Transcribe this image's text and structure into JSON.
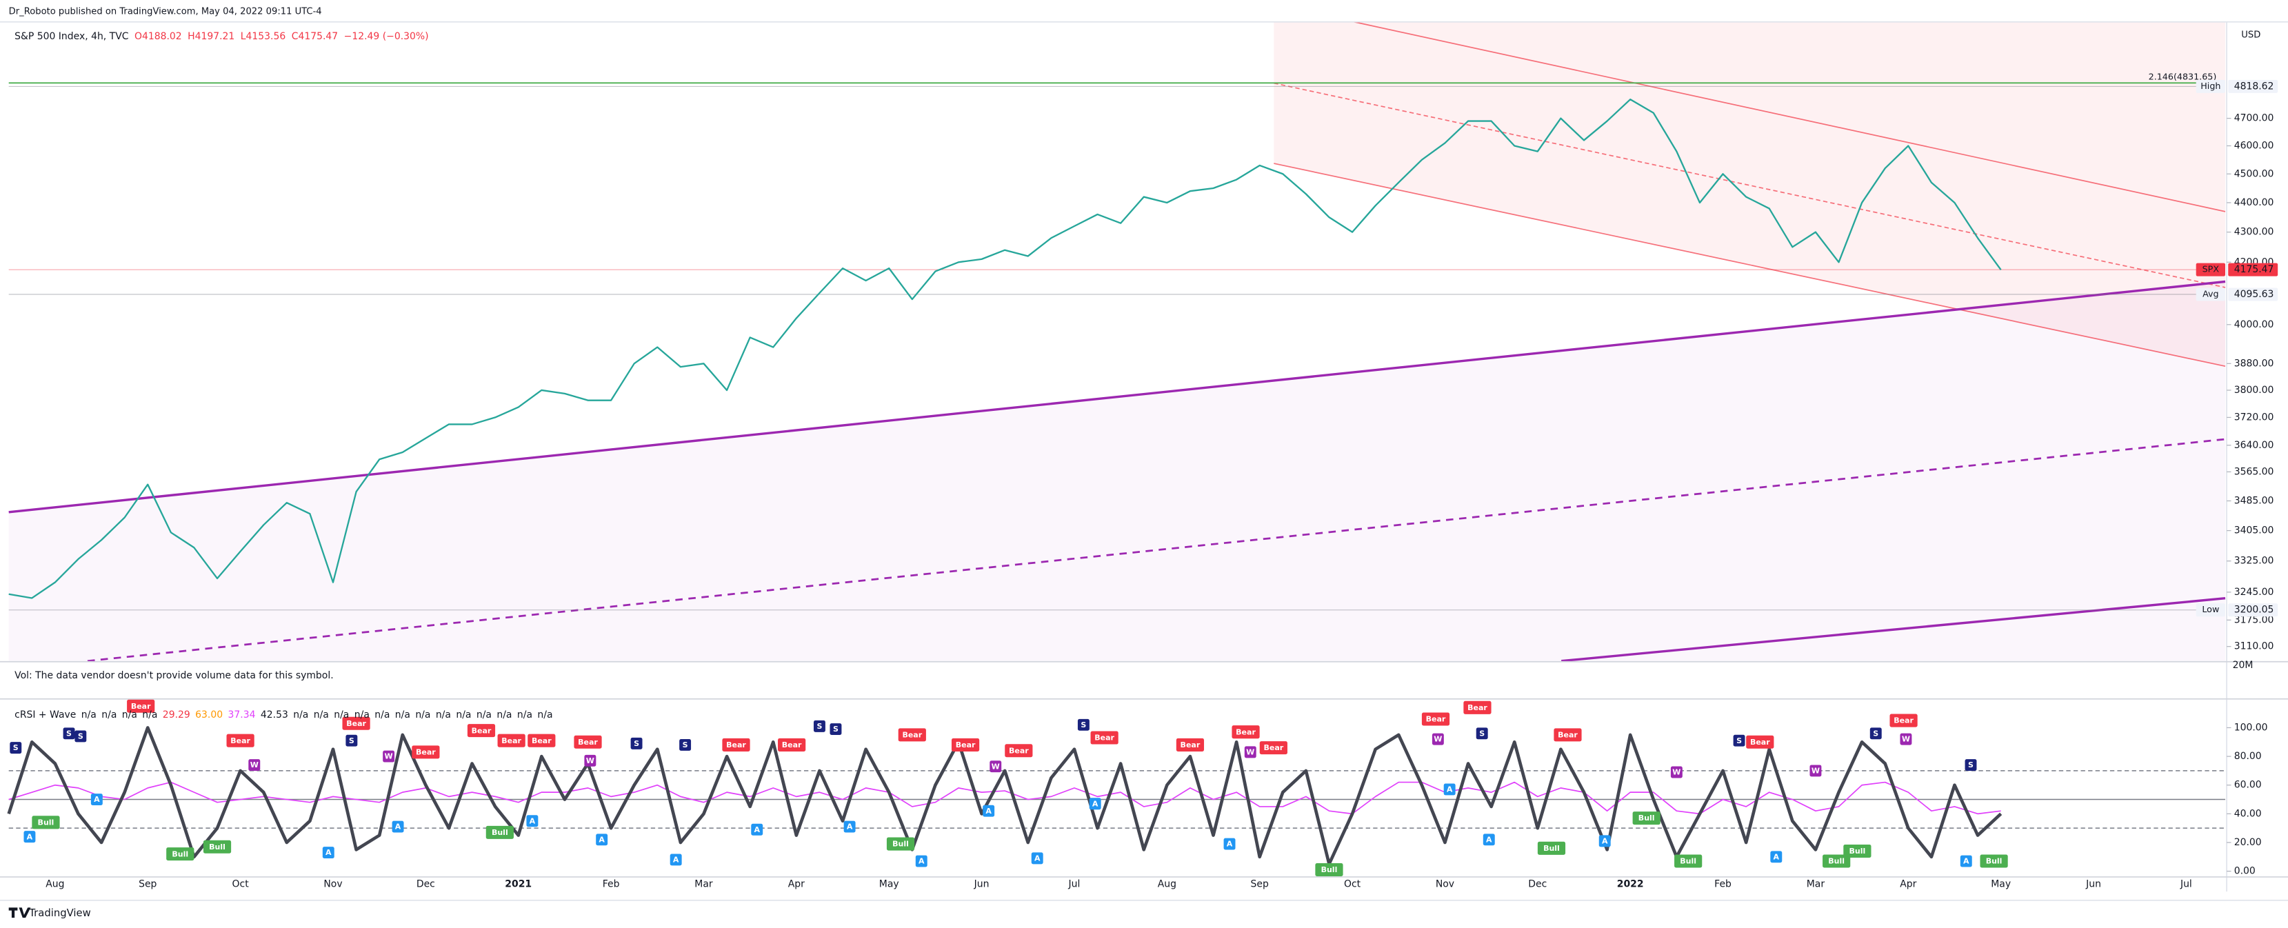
{
  "header": {
    "publisher": "Dr_Roboto published on TradingView.com, May 04, 2022 09:11 UTC-4"
  },
  "footer": {
    "brand": "TradingView"
  },
  "volume": {
    "note": "Vol: The data vendor doesn't provide volume data for this symbol.",
    "tick": "20M"
  },
  "chart_data": [
    {
      "type": "line",
      "title": "S&P 500 Index, 4h, TVC",
      "ohlc": [
        "O4188.02",
        "H4197.21",
        "L4153.56",
        "C4175.47",
        "−12.49 (−0.30%)"
      ],
      "currency": "USD",
      "color": "#26a69a",
      "log": true,
      "ylim": [
        3075,
        5068
      ],
      "yticks": [
        {
          "value": 3110,
          "label": "3110.00"
        },
        {
          "value": 3175,
          "label": "3175.00"
        },
        {
          "value": 3245,
          "label": "3245.00"
        },
        {
          "value": 3325,
          "label": "3325.00"
        },
        {
          "value": 3405,
          "label": "3405.00"
        },
        {
          "value": 3485,
          "label": "3485.00"
        },
        {
          "value": 3565,
          "label": "3565.00"
        },
        {
          "value": 3640,
          "label": "3640.00"
        },
        {
          "value": 3720,
          "label": "3720.00"
        },
        {
          "value": 3800,
          "label": "3800.00"
        },
        {
          "value": 3880,
          "label": "3880.00"
        },
        {
          "value": 4000,
          "label": "4000.00"
        },
        {
          "value": 4200,
          "label": "4200.00"
        },
        {
          "value": 4300,
          "label": "4300.00"
        },
        {
          "value": 4400,
          "label": "4400.00"
        },
        {
          "value": 4500,
          "label": "4500.00"
        },
        {
          "value": 4600,
          "label": "4600.00"
        },
        {
          "value": 4700,
          "label": "4700.00"
        }
      ],
      "values": [
        3240,
        3230,
        3270,
        3330,
        3380,
        3440,
        3530,
        3400,
        3360,
        3280,
        3350,
        3420,
        3480,
        3450,
        3270,
        3510,
        3600,
        3620,
        3660,
        3700,
        3700,
        3720,
        3750,
        3800,
        3790,
        3770,
        3770,
        3880,
        3930,
        3870,
        3880,
        3800,
        3960,
        3930,
        4020,
        4100,
        4180,
        4140,
        4180,
        4080,
        4170,
        4200,
        4210,
        4240,
        4220,
        4280,
        4320,
        4360,
        4330,
        4420,
        4400,
        4440,
        4450,
        4480,
        4530,
        4500,
        4430,
        4350,
        4300,
        4390,
        4470,
        4550,
        4610,
        4690,
        4690,
        4600,
        4580,
        4700,
        4620,
        4690,
        4770,
        4720,
        4580,
        4400,
        4500,
        4420,
        4380,
        4250,
        4300,
        4200,
        4400,
        4520,
        4600,
        4470,
        4400,
        4280,
        4175,
        null,
        null,
        null,
        null,
        null,
        null,
        null,
        null,
        null
      ],
      "hlines": [
        {
          "name": "High",
          "value": 4818.62,
          "color": "#787b86",
          "filled": false
        },
        {
          "name": "SPX",
          "value": 4175.47,
          "color": "#f23645",
          "filled": true
        },
        {
          "name": "Avg",
          "value": 4095.63,
          "color": "#787b86",
          "filled": false
        },
        {
          "name": "Low",
          "value": 3200.05,
          "color": "#787b86",
          "filled": false
        }
      ],
      "fib": {
        "label": "2.146(4831.65)",
        "value": 4831.65,
        "color": "#4caf50"
      }
    },
    {
      "type": "line",
      "title": "cRSI + Wave",
      "legend": [
        {
          "text": "n/a",
          "color": "#131722"
        },
        {
          "text": "n/a",
          "color": "#131722"
        },
        {
          "text": "n/a",
          "color": "#131722"
        },
        {
          "text": "n/a",
          "color": "#131722"
        },
        {
          "text": "29.29",
          "color": "#f23645"
        },
        {
          "text": "63.00",
          "color": "#ff9800"
        },
        {
          "text": "37.34",
          "color": "#e040fb"
        },
        {
          "text": "42.53",
          "color": "#131722"
        },
        {
          "text": "n/a",
          "color": "#131722"
        },
        {
          "text": "n/a",
          "color": "#131722"
        },
        {
          "text": "n/a",
          "color": "#131722"
        },
        {
          "text": "n/a",
          "color": "#131722"
        },
        {
          "text": "n/a",
          "color": "#131722"
        },
        {
          "text": "n/a",
          "color": "#131722"
        },
        {
          "text": "n/a",
          "color": "#131722"
        },
        {
          "text": "n/a",
          "color": "#131722"
        },
        {
          "text": "n/a",
          "color": "#131722"
        },
        {
          "text": "n/a",
          "color": "#131722"
        },
        {
          "text": "n/a",
          "color": "#131722"
        },
        {
          "text": "n/a",
          "color": "#131722"
        },
        {
          "text": "n/a",
          "color": "#131722"
        }
      ],
      "categories": [
        null,
        null,
        "Aug",
        null,
        null,
        null,
        "Sep",
        null,
        null,
        null,
        "Oct",
        null,
        null,
        null,
        "Nov",
        null,
        null,
        null,
        "Dec",
        null,
        null,
        null,
        "2021",
        null,
        null,
        null,
        "Feb",
        null,
        null,
        null,
        "Mar",
        null,
        null,
        null,
        "Apr",
        null,
        null,
        null,
        "May",
        null,
        null,
        null,
        "Jun",
        null,
        null,
        null,
        "Jul",
        null,
        null,
        null,
        "Aug",
        null,
        null,
        null,
        "Sep",
        null,
        null,
        null,
        "Oct",
        null,
        null,
        null,
        "Nov",
        null,
        null,
        null,
        "Dec",
        null,
        null,
        null,
        "2022",
        null,
        null,
        null,
        "Feb",
        null,
        null,
        null,
        "Mar",
        null,
        null,
        null,
        "Apr",
        null,
        null,
        null,
        "May",
        null,
        null,
        null,
        "Jun",
        null,
        null,
        null,
        "Jul",
        null
      ],
      "ylim": [
        -4,
        117
      ],
      "yticks": [
        {
          "value": 0,
          "label": "0.00"
        },
        {
          "value": 20,
          "label": "20.00"
        },
        {
          "value": 40,
          "label": "40.00"
        },
        {
          "value": 60,
          "label": "60.00"
        },
        {
          "value": 80,
          "label": "80.00"
        },
        {
          "value": 100,
          "label": "100.00"
        }
      ],
      "levels": [
        {
          "value": 70,
          "dashed": true
        },
        {
          "value": 50,
          "dashed": false
        },
        {
          "value": 30,
          "dashed": true
        }
      ],
      "series": [
        {
          "color": "#e040fb",
          "width": 0.8,
          "values": [
            50,
            55,
            60,
            58,
            52,
            50,
            58,
            62,
            55,
            48,
            50,
            52,
            50,
            48,
            52,
            50,
            48,
            55,
            58,
            52,
            55,
            52,
            48,
            55,
            55,
            58,
            52,
            55,
            60,
            52,
            48,
            55,
            52,
            58,
            52,
            55,
            50,
            58,
            55,
            45,
            48,
            58,
            55,
            56,
            50,
            52,
            58,
            52,
            55,
            45,
            48,
            58,
            50,
            55,
            45,
            45,
            52,
            42,
            40,
            52,
            62,
            62,
            55,
            58,
            55,
            62,
            52,
            58,
            55,
            42,
            55,
            55,
            42,
            40,
            50,
            45,
            55,
            50,
            42,
            45,
            60,
            62,
            55,
            42,
            45,
            40,
            42,
            null,
            null,
            null,
            null,
            null,
            null,
            null,
            null,
            null
          ]
        },
        {
          "color": "#434651",
          "width": 2.2,
          "values": [
            40,
            90,
            75,
            40,
            20,
            55,
            100,
            60,
            10,
            30,
            70,
            55,
            20,
            35,
            85,
            15,
            25,
            95,
            60,
            30,
            75,
            45,
            25,
            80,
            50,
            75,
            30,
            60,
            85,
            20,
            40,
            80,
            45,
            90,
            25,
            70,
            35,
            85,
            55,
            15,
            60,
            90,
            40,
            70,
            20,
            65,
            85,
            30,
            75,
            15,
            60,
            80,
            25,
            90,
            10,
            55,
            70,
            5,
            40,
            85,
            95,
            60,
            20,
            75,
            45,
            90,
            30,
            85,
            55,
            15,
            95,
            50,
            10,
            40,
            70,
            20,
            85,
            35,
            15,
            55,
            90,
            75,
            30,
            10,
            60,
            25,
            40,
            null,
            null,
            null,
            null,
            null,
            null,
            null,
            null,
            null
          ]
        }
      ],
      "signals": [
        {
          "name": "Bear",
          "color": "#f23645",
          "x": [
            5.7,
            10,
            15,
            18,
            20.4,
            21.7,
            23,
            25,
            31.4,
            33.8,
            39,
            41.3,
            43.6,
            47.3,
            51,
            53.4,
            54.6,
            61.6,
            63.4,
            67.3,
            75.6,
            81.8
          ],
          "y": [
            115,
            91,
            103,
            83,
            98,
            91,
            91,
            90,
            88,
            88,
            95,
            88,
            84,
            93,
            88,
            97,
            86,
            106,
            114,
            95,
            90,
            105
          ]
        },
        {
          "name": "Bull",
          "color": "#4caf50",
          "x": [
            1.6,
            7.4,
            9,
            21.2,
            38.5,
            57,
            66.6,
            70.7,
            72.5,
            78.9,
            79.8,
            85.7
          ],
          "y": [
            34,
            12,
            17,
            27,
            19,
            1,
            16,
            37,
            7,
            7,
            14,
            7
          ]
        },
        {
          "name": "A",
          "color": "#2196f3",
          "x": [
            0.9,
            3.8,
            13.8,
            16.8,
            22.6,
            25.6,
            28.8,
            32.3,
            36.3,
            39.4,
            42.3,
            44.4,
            46.9,
            52.7,
            62.2,
            63.9,
            68.9,
            76.3,
            84.5
          ],
          "y": [
            24,
            50,
            13,
            31,
            35,
            22,
            8,
            29,
            31,
            7,
            42,
            9,
            47,
            19,
            57,
            22,
            21,
            10,
            7
          ]
        },
        {
          "name": "S",
          "color": "#1a237e",
          "x": [
            0.3,
            2.6,
            3.1,
            14.8,
            27.1,
            29.2,
            35,
            35.7,
            46.4,
            63.6,
            74.7,
            80.6,
            84.7
          ],
          "y": [
            86,
            96,
            94,
            91,
            89,
            88,
            101,
            99,
            102,
            96,
            91,
            96,
            74
          ]
        },
        {
          "name": "W",
          "color": "#9c27b0",
          "x": [
            10.6,
            16.4,
            25.1,
            42.6,
            53.6,
            61.7,
            72,
            78,
            81.9
          ],
          "y": [
            74,
            80,
            77,
            73,
            83,
            92,
            69,
            70,
            92
          ]
        }
      ]
    }
  ]
}
